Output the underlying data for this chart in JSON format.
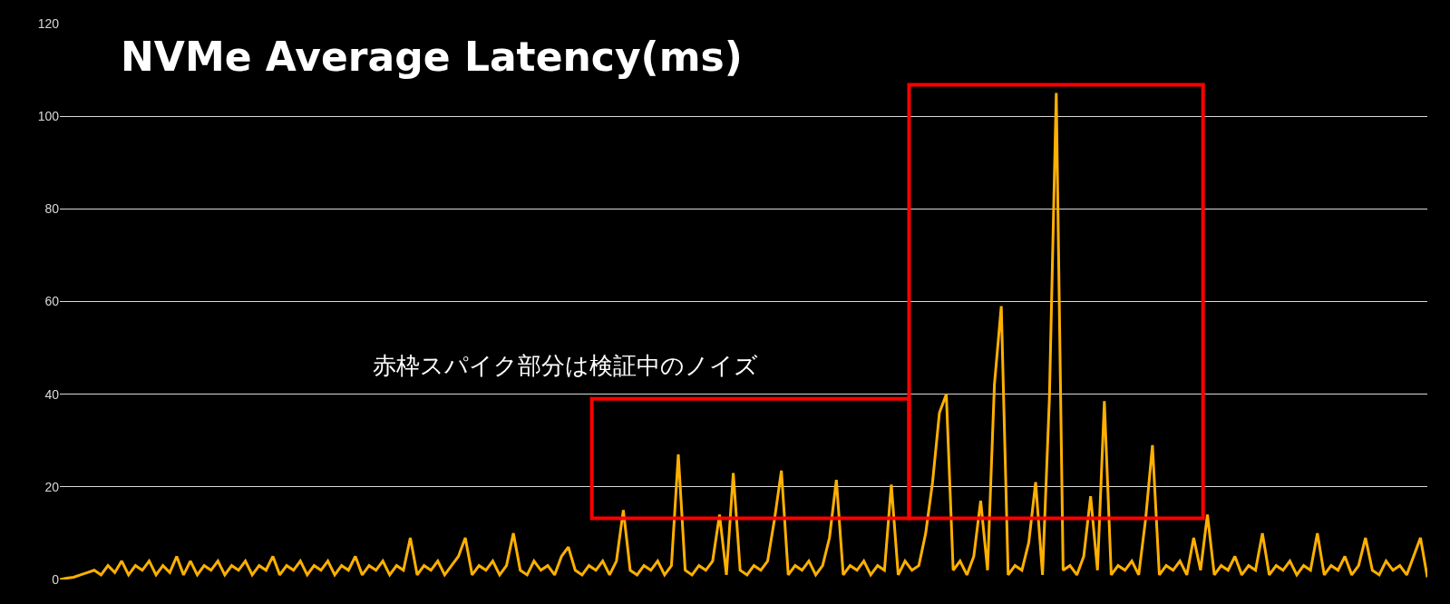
{
  "chart_data": {
    "type": "line",
    "title": "NVMe Average Latency(ms)",
    "categories": [
      null,
      null,
      null,
      null,
      null,
      null,
      null,
      null,
      null,
      null,
      null,
      null,
      null,
      null,
      null,
      null,
      null,
      null,
      null,
      null,
      null,
      null,
      null,
      null,
      null,
      null,
      null,
      null,
      null,
      null,
      null,
      null,
      null,
      null,
      null,
      null,
      null,
      null,
      null,
      null,
      null,
      null,
      null,
      null,
      null,
      null,
      null,
      null,
      null,
      null,
      null,
      null,
      null,
      null,
      null,
      null,
      null,
      null,
      null,
      null,
      null,
      null,
      null,
      null,
      null,
      null,
      null,
      null,
      null,
      null,
      null,
      null,
      null,
      null,
      null,
      null,
      null,
      null,
      null,
      null,
      null,
      null,
      null,
      null,
      null,
      null,
      null,
      null,
      null,
      null,
      null,
      null,
      null,
      null,
      null,
      null,
      null,
      null,
      null,
      null,
      null,
      null,
      null,
      null,
      null,
      null,
      null,
      null,
      null,
      null,
      null,
      null,
      null,
      null,
      null,
      null,
      null,
      null,
      null,
      null,
      null,
      null,
      null,
      null,
      null,
      null,
      null,
      null,
      null,
      null,
      null,
      null,
      null,
      null,
      null,
      null,
      null,
      null,
      null,
      null,
      null,
      null,
      null,
      null,
      null,
      null,
      null,
      null,
      null,
      null,
      null,
      null,
      null,
      null,
      null,
      null,
      null,
      null,
      null,
      null,
      null,
      null,
      null,
      null,
      null,
      null,
      null,
      null,
      null,
      null,
      null,
      null,
      null,
      null,
      null,
      null,
      null,
      null,
      null,
      null,
      null,
      null,
      null,
      null,
      null,
      null,
      null,
      null,
      null,
      null,
      null,
      null,
      null,
      null,
      null,
      null,
      null,
      null,
      null,
      null
    ],
    "series": [
      {
        "color": "#ffb000",
        "values": [
          0,
          0.3,
          0.5,
          1,
          1.5,
          2,
          1,
          3,
          1.5,
          4,
          1,
          3,
          2,
          4,
          1,
          3,
          1.5,
          5,
          1,
          4,
          1,
          3,
          2,
          4,
          1,
          3,
          2,
          4,
          1,
          3,
          2,
          5,
          1,
          3,
          2,
          4,
          1,
          3,
          2,
          4,
          1,
          3,
          2,
          5,
          1,
          3,
          2,
          4,
          1,
          3,
          2,
          9,
          1,
          3,
          2,
          4,
          1,
          3,
          5,
          9,
          1,
          3,
          2,
          4,
          1,
          3,
          10,
          2,
          1,
          4,
          2,
          3,
          1,
          5,
          7,
          2,
          1,
          3,
          2,
          4,
          1,
          4,
          15,
          2,
          1,
          3,
          2,
          4,
          1,
          3,
          27,
          2,
          1,
          3,
          2,
          4,
          14,
          1,
          23,
          2,
          1,
          3,
          2,
          4,
          13,
          23.5,
          1,
          3,
          2,
          4,
          1,
          3,
          9,
          21.5,
          1,
          3,
          2,
          4,
          1,
          3,
          2,
          20.5,
          1,
          4,
          2,
          3,
          10,
          21,
          36,
          40,
          2,
          4,
          1,
          5,
          17,
          2,
          42,
          59,
          1,
          3,
          2,
          8,
          21,
          1,
          39,
          105,
          2,
          3,
          1,
          5,
          18,
          2,
          38.5,
          1,
          3,
          2,
          4,
          1,
          13,
          29,
          1,
          3,
          2,
          4,
          1,
          9,
          2,
          14,
          1,
          3,
          2,
          5,
          1,
          3,
          2,
          10,
          1,
          3,
          2,
          4,
          1,
          3,
          2,
          10,
          1,
          3,
          2,
          5,
          1,
          3,
          9,
          2,
          1,
          4,
          2,
          3,
          1,
          5,
          9,
          0.5
        ]
      }
    ],
    "ylim": [
      0,
      120
    ],
    "yticks": [
      0,
      20,
      40,
      60,
      80,
      100,
      120
    ],
    "grid": "y",
    "tick_labels": "y",
    "annotations": [
      "赤枠スパイク部分は検証中のノイズ"
    ]
  }
}
